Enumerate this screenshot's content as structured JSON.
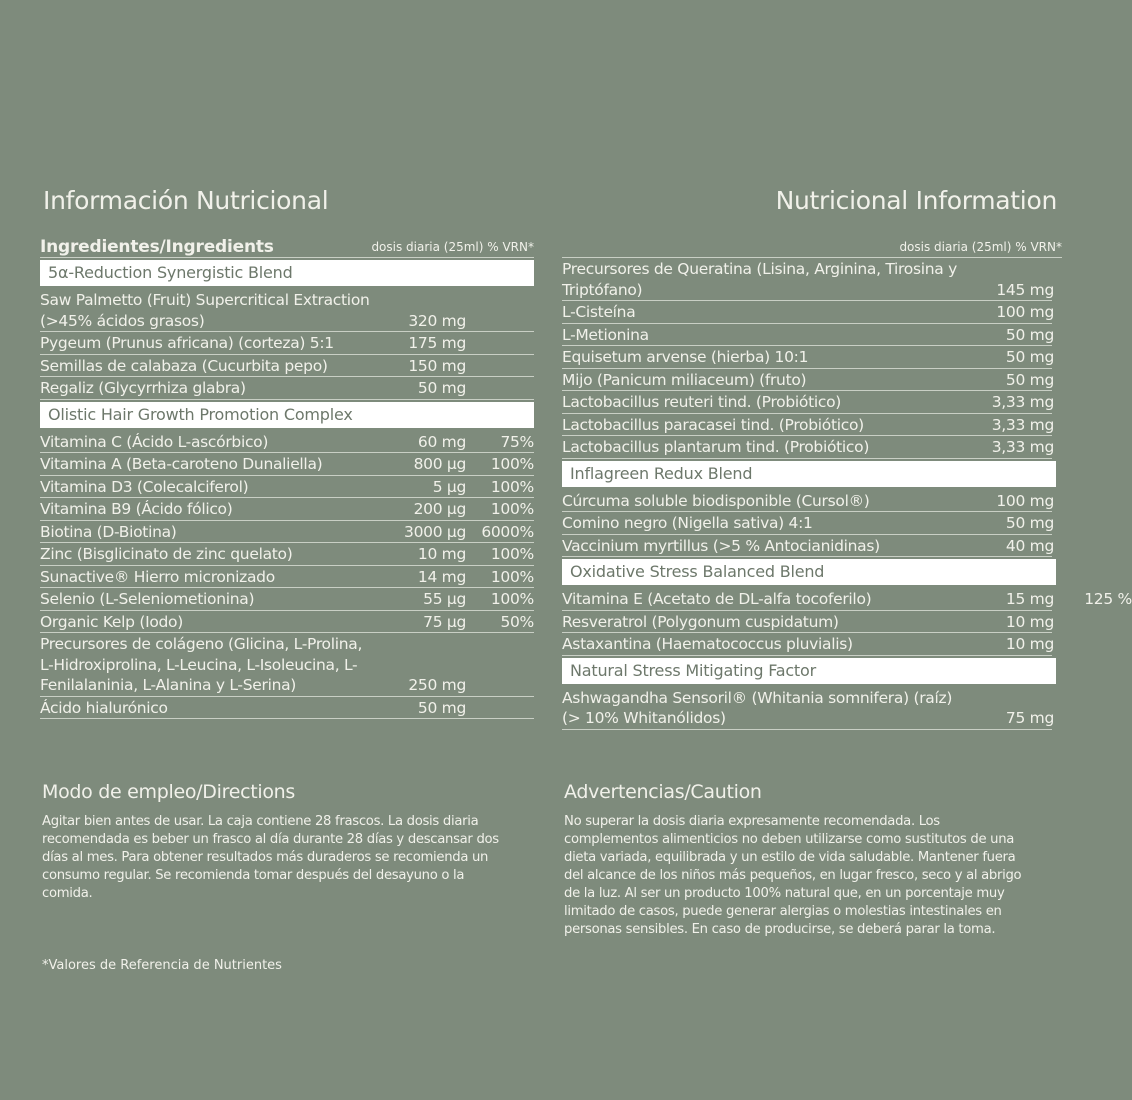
{
  "titles": {
    "left": "Información Nutricional",
    "right": "Nutricional Information"
  },
  "table_header": {
    "label": "Ingredientes/Ingredients",
    "dose": "dosis diaria (25ml) % VRN*"
  },
  "left_groups": [
    {
      "title": "5α-Reduction Synergistic Blend",
      "rows": [
        {
          "name": "Saw Palmetto (Fruit) Supercritical Extraction (>45% ácidos grasos)",
          "amount": "320 mg",
          "vrn": ""
        },
        {
          "name": "Pygeum (Prunus africana) (corteza) 5:1",
          "amount": "175 mg",
          "vrn": ""
        },
        {
          "name": "Semillas de calabaza (Cucurbita pepo)",
          "amount": "150 mg",
          "vrn": ""
        },
        {
          "name": "Regaliz (Glycyrrhiza glabra)",
          "amount": "50 mg",
          "vrn": ""
        }
      ]
    },
    {
      "title": "Olistic Hair Growth Promotion Complex",
      "rows": [
        {
          "name": "Vitamina C (Ácido L-ascórbico)",
          "amount": "60 mg",
          "vrn": "75%"
        },
        {
          "name": "Vitamina A (Beta-caroteno Dunaliella)",
          "amount": "800 µg",
          "vrn": "100%"
        },
        {
          "name": "Vitamina D3 (Colecalciferol)",
          "amount": "5 µg",
          "vrn": "100%"
        },
        {
          "name": "Vitamina B9 (Ácido fólico)",
          "amount": "200 µg",
          "vrn": "100%"
        },
        {
          "name": "Biotina (D-Biotina)",
          "amount": "3000 µg",
          "vrn": "6000%"
        },
        {
          "name": "Zinc (Bisglicinato de zinc quelato)",
          "amount": "10 mg",
          "vrn": "100%"
        },
        {
          "name": "Sunactive® Hierro micronizado",
          "amount": "14 mg",
          "vrn": "100%"
        },
        {
          "name": "Selenio (L-Seleniometionina)",
          "amount": "55 µg",
          "vrn": "100%"
        },
        {
          "name": "Organic Kelp (Iodo)",
          "amount": "75 µg",
          "vrn": "50%"
        },
        {
          "name": "Precursores de colágeno (Glicina, L-Prolina, L-Hidroxiprolina, L-Leucina, L-Isoleucina, L-Fenilalaninia, L-Alanina y L-Serina)",
          "amount": "250 mg",
          "vrn": ""
        },
        {
          "name": "Ácido hialurónico",
          "amount": "50 mg",
          "vrn": ""
        }
      ]
    }
  ],
  "right_groups": [
    {
      "title": "",
      "rows": [
        {
          "name": "Precursores de Queratina (Lisina, Arginina, Tirosina y Triptófano)",
          "amount": "145 mg",
          "vrn": ""
        },
        {
          "name": "L-Cisteína",
          "amount": "100 mg",
          "vrn": ""
        },
        {
          "name": "L-Metionina",
          "amount": "50 mg",
          "vrn": ""
        },
        {
          "name": "Equisetum arvense (hierba) 10:1",
          "amount": "50 mg",
          "vrn": ""
        },
        {
          "name": "Mijo (Panicum miliaceum) (fruto)",
          "amount": "50 mg",
          "vrn": ""
        },
        {
          "name": "Lactobacillus reuteri tind. (Probiótico)",
          "amount": "3,33 mg",
          "vrn": ""
        },
        {
          "name": "Lactobacillus paracasei tind. (Probiótico)",
          "amount": "3,33 mg",
          "vrn": ""
        },
        {
          "name": "Lactobacillus plantarum tind. (Probiótico)",
          "amount": "3,33 mg",
          "vrn": ""
        }
      ]
    },
    {
      "title": "Inflagreen Redux Blend",
      "rows": [
        {
          "name": "Cúrcuma soluble biodisponible (Cursol®)",
          "amount": "100 mg",
          "vrn": ""
        },
        {
          "name": "Comino negro (Nigella sativa) 4:1",
          "amount": "50 mg",
          "vrn": ""
        },
        {
          "name": "Vaccinium myrtillus (>5 % Antocianidinas)",
          "amount": "40 mg",
          "vrn": ""
        }
      ]
    },
    {
      "title": "Oxidative Stress Balanced Blend",
      "rows": [
        {
          "name": "Vitamina E (Acetato de DL-alfa tocoferilo)",
          "amount": "15 mg",
          "vrn": "125 %"
        },
        {
          "name": "Resveratrol (Polygonum cuspidatum)",
          "amount": "10 mg",
          "vrn": ""
        },
        {
          "name": "Astaxantina (Haematococcus pluvialis)",
          "amount": "10 mg",
          "vrn": ""
        }
      ]
    },
    {
      "title": "Natural Stress Mitigating Factor",
      "rows": [
        {
          "name": "Ashwagandha Sensoril® (Whitania somnifera) (raíz) (> 10% Whitanólidos)",
          "amount": "75 mg",
          "vrn": ""
        }
      ]
    }
  ],
  "directions": {
    "title": "Modo de empleo/Directions",
    "text": "Agitar bien antes de usar. La caja contiene 28 frascos. La dosis diaria recomendada es beber un frasco al día durante 28 días y descansar dos días al mes. Para obtener resultados más duraderos se recomienda un consumo regular. Se recomienda tomar después del desayuno o la comida."
  },
  "caution": {
    "title": "Advertencias/Caution",
    "text": "No superar la dosis diaria expresamente recomendada. Los complementos alimenticios no deben utilizarse como sustitutos de una dieta variada, equilibrada y un estilo de vida saludable. Mantener fuera del alcance de los niños más pequeños, en lugar fresco, seco y al abrigo de la luz. Al ser un producto 100% natural que, en un porcentaje muy limitado de casos, puede generar alergias o molestias intestinales en personas sensibles. En caso de producirse, se deberá parar la toma."
  },
  "footnote": "*Valores de Referencia de Nutrientes",
  "colors": {
    "background": "#7e8b7c",
    "text": "#f1f1ea",
    "band": "#ffffff",
    "band_text": "#6d786b"
  }
}
